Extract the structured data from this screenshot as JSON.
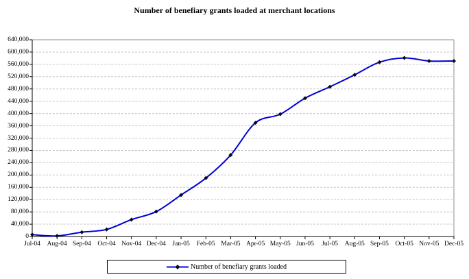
{
  "chart_data": {
    "type": "line",
    "title": "Number of benefiary grants loaded at merchant locations",
    "legend": "Number of benefiary grants loaded",
    "legend_position": "bottom",
    "grid": true,
    "smoothed": true,
    "marker": "diamond",
    "categories": [
      "Jul-04",
      "Aug-04",
      "Sep-04",
      "Oct-04",
      "Nov-04",
      "Dec-04",
      "Jan-05",
      "Feb-05",
      "Mar-05",
      "Apr-05",
      "May-05",
      "Jun-05",
      "Jul-05",
      "Aug-05",
      "Sep-05",
      "Oct-05",
      "Nov-05",
      "Dec-05"
    ],
    "values": [
      6000,
      2000,
      14000,
      23000,
      55000,
      81000,
      135000,
      190000,
      265000,
      370000,
      398000,
      450000,
      487000,
      526000,
      567000,
      581000,
      571000,
      571000
    ],
    "xlabel": "",
    "ylabel": "",
    "ylim": [
      0,
      640000
    ],
    "ytick_step": 40000,
    "colors": {
      "line": "#0000D8",
      "marker": "#0a0a14",
      "gridline": "#C6C6C6",
      "axis": "#000000",
      "plot_border": "#8C8C8C"
    }
  }
}
